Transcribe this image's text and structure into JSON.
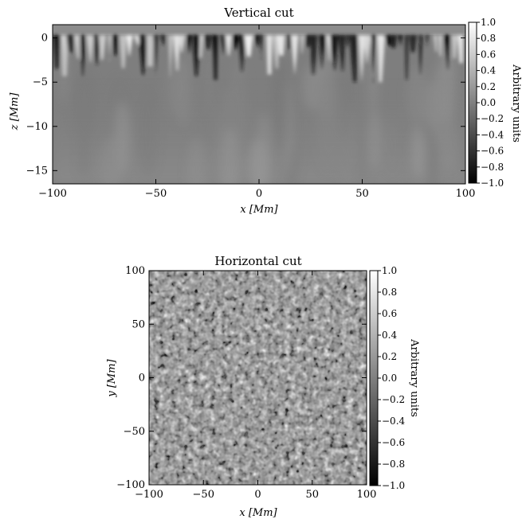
{
  "chart_data": [
    {
      "type": "heatmap",
      "title": "Vertical cut",
      "xlabel": "x [Mm]",
      "ylabel": "z [Mm]",
      "xlim": [
        -100,
        100
      ],
      "ylim": [
        -16.5,
        1.5
      ],
      "x_ticks": [
        -100,
        -50,
        0,
        50,
        100
      ],
      "y_ticks": [
        0,
        -5,
        -10,
        -15
      ],
      "colorbar": {
        "label": "Arbitrary units",
        "range": [
          -1.0,
          1.0
        ],
        "ticks": [
          "1.0",
          "0.8",
          "0.6",
          "0.4",
          "0.2",
          "0.0",
          "-0.2",
          "-0.4",
          "-0.6",
          "-0.8",
          "-1.0"
        ],
        "colormap": "grayscale"
      }
    },
    {
      "type": "heatmap",
      "title": "Horizontal cut",
      "xlabel": "x [Mm]",
      "ylabel": "y [Mm]",
      "xlim": [
        -100,
        100
      ],
      "ylim": [
        -100,
        100
      ],
      "x_ticks": [
        -100,
        -50,
        0,
        50,
        100
      ],
      "y_ticks": [
        100,
        50,
        0,
        -50,
        -100
      ],
      "colorbar": {
        "label": "Arbitrary units",
        "range": [
          -1.0,
          1.0
        ],
        "ticks": [
          "1.0",
          "0.8",
          "0.6",
          "0.4",
          "0.2",
          "0.0",
          "-0.2",
          "-0.4",
          "-0.6",
          "-0.8",
          "-1.0"
        ],
        "colormap": "grayscale"
      }
    }
  ]
}
